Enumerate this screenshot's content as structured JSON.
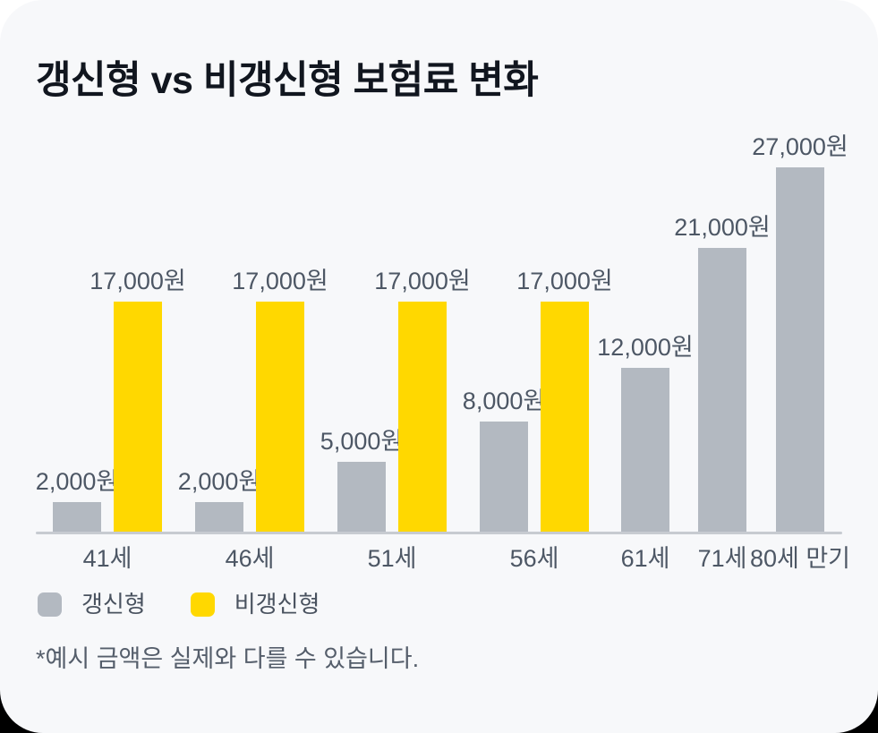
{
  "card": {
    "title": "갱신형 vs 비갱신형 보험료 변화",
    "footnote": "*예시 금액은 실제와 다를 수 있습니다.",
    "background": "#F7F8FA"
  },
  "chart_data": {
    "type": "bar",
    "title": "갱신형 vs 비갱신형 보험료 변화",
    "categories": [
      "41세",
      "46세",
      "51세",
      "56세",
      "61세",
      "71세",
      "80세 만기"
    ],
    "series": [
      {
        "name": "갱신형",
        "key": "renewal",
        "color": "#B3B9C1",
        "values": [
          2000,
          2000,
          5000,
          8000,
          12000,
          21000,
          27000
        ],
        "labels": [
          "2,000원",
          "2,000원",
          "5,000원",
          "8,000원",
          "12,000원",
          "21,000원",
          "27,000원"
        ]
      },
      {
        "name": "비갱신형",
        "key": "non-renewal",
        "color": "#FFD800",
        "values": [
          17000,
          17000,
          17000,
          17000,
          null,
          null,
          null
        ],
        "labels": [
          "17,000원",
          "17,000원",
          "17,000원",
          "17,000원",
          null,
          null,
          null
        ]
      }
    ],
    "unit": "원",
    "xlabel": "",
    "ylabel": "",
    "ylim": [
      0,
      27000
    ],
    "grid": false,
    "value_labels": true,
    "legend_position": "bottom-left",
    "annotation": "*예시 금액은 실제와 다를 수 있습니다."
  }
}
